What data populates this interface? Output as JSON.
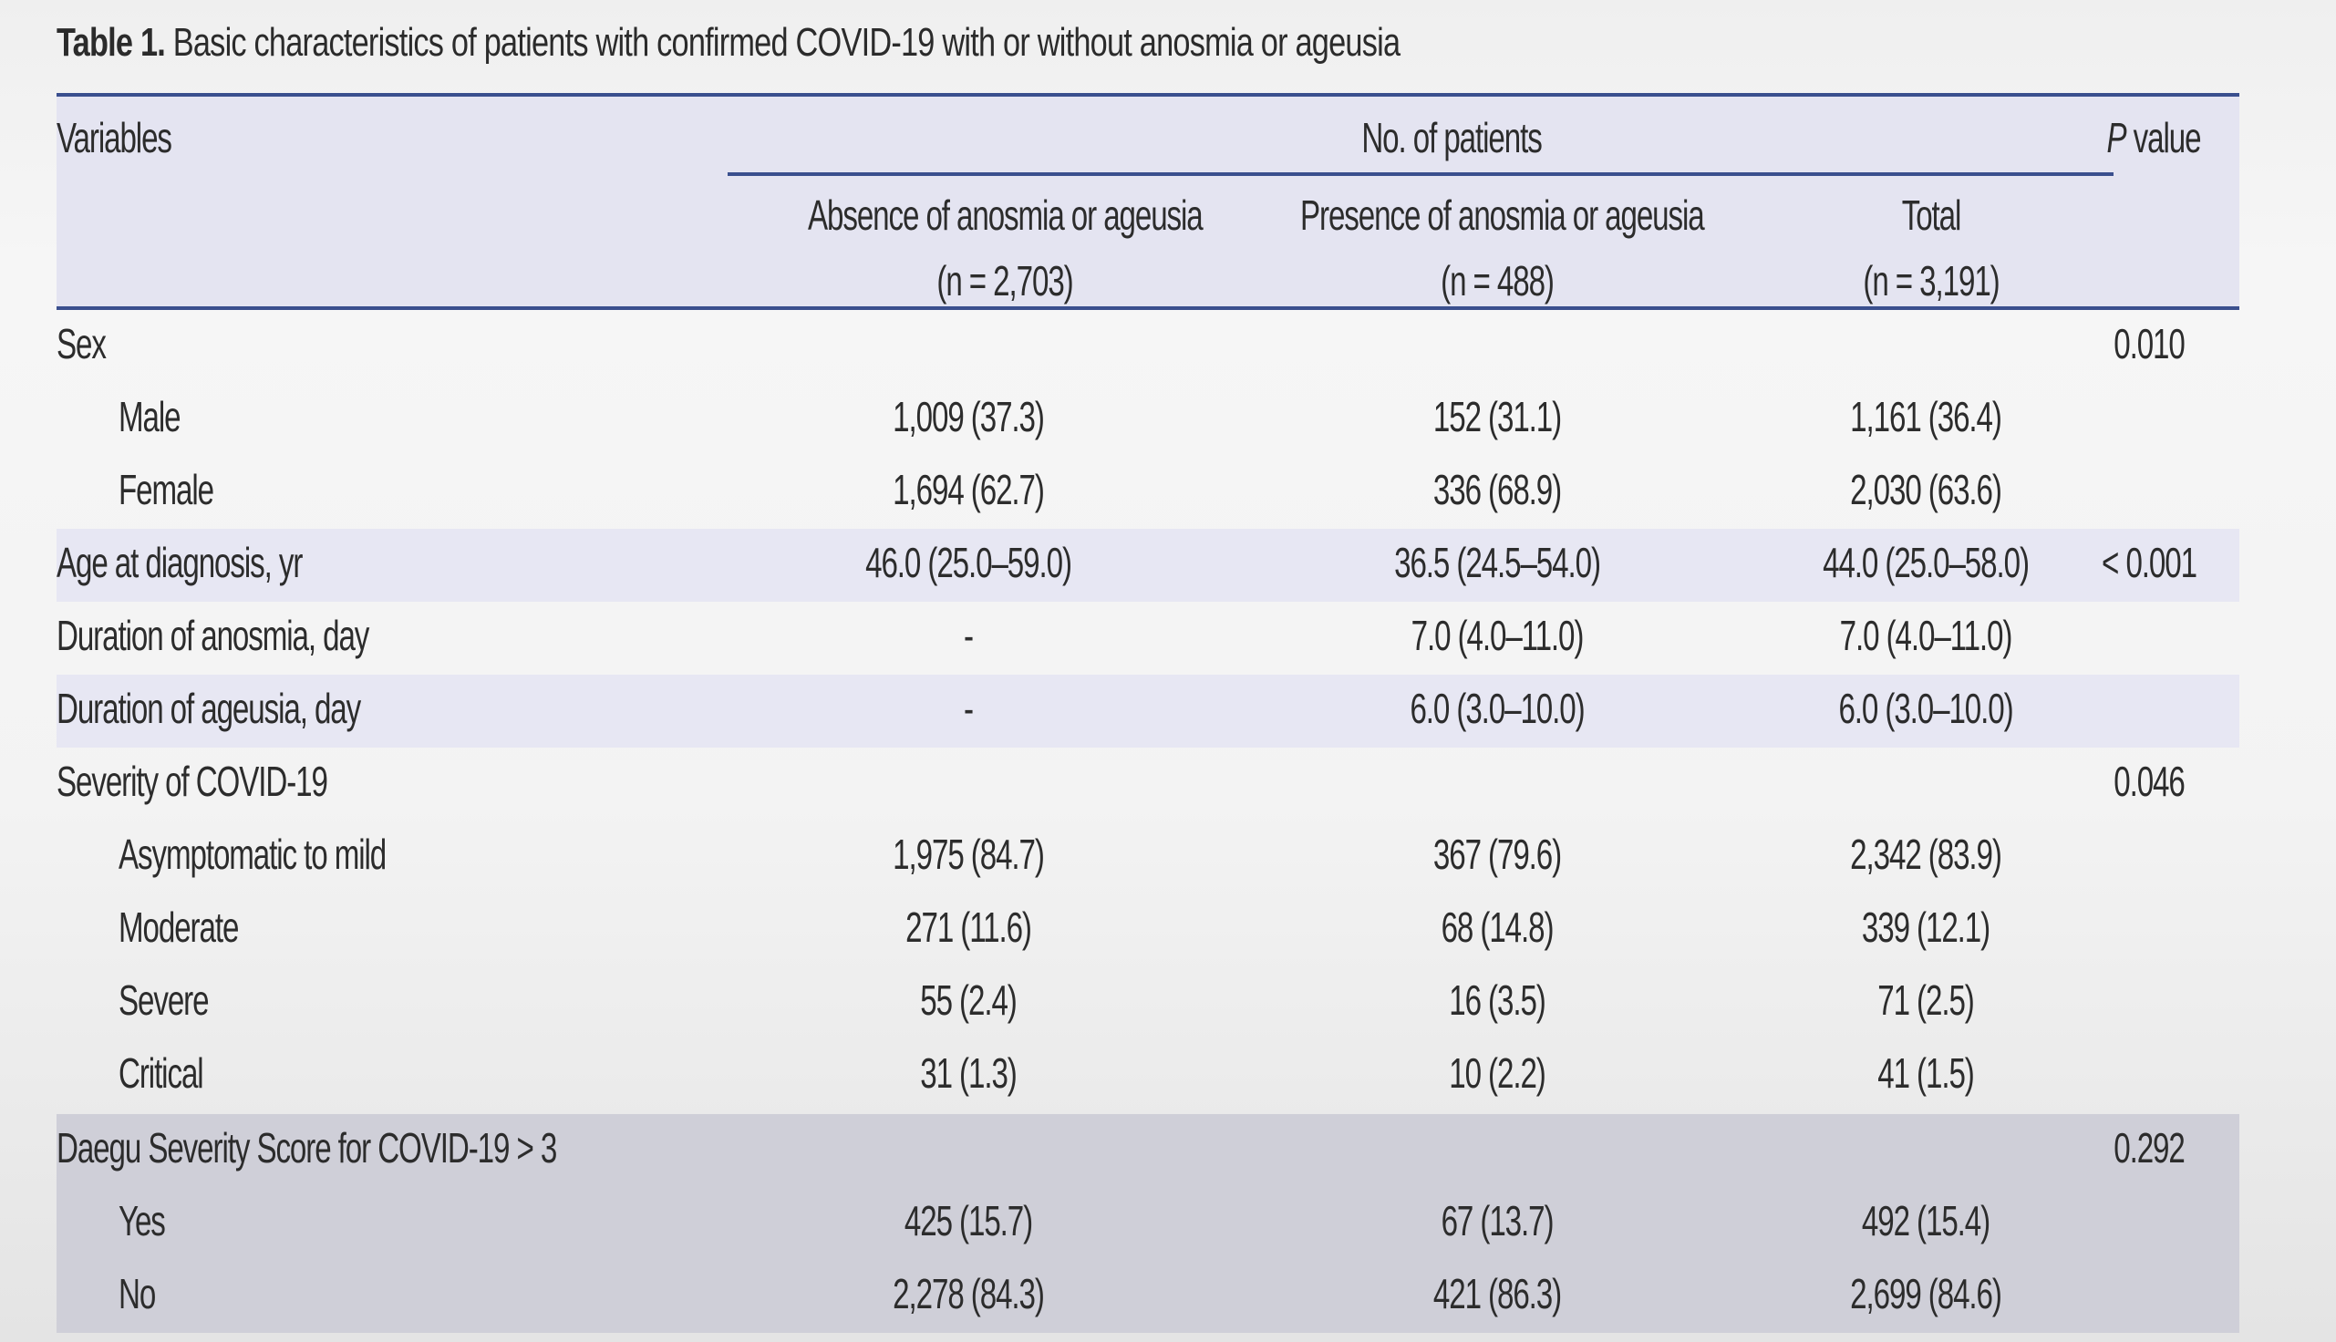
{
  "caption": {
    "label": "Table 1.",
    "text": " Basic characteristics of patients with confirmed COVID-19 with or without anosmia or ageusia"
  },
  "header": {
    "variables": "Variables",
    "no_of_patients": "No. of patients",
    "p_italic": "P",
    "p_rest": " value",
    "columns": [
      {
        "line1": "Absence of anosmia or ageusia",
        "line2": "(n = 2,703)"
      },
      {
        "line1": "Presence of anosmia or ageusia",
        "line2": "(n = 488)"
      },
      {
        "line1": "Total",
        "line2": "(n = 3,191)"
      }
    ]
  },
  "rows": [
    {
      "label": "Sex",
      "absence": "",
      "presence": "",
      "total": "",
      "p": "0.010"
    },
    {
      "label": "Male",
      "absence": "1,009 (37.3)",
      "presence": "152 (31.1)",
      "total": "1,161 (36.4)",
      "p": ""
    },
    {
      "label": "Female",
      "absence": "1,694 (62.7)",
      "presence": "336 (68.9)",
      "total": "2,030 (63.6)",
      "p": ""
    },
    {
      "label": "Age at diagnosis, yr",
      "absence": "46.0 (25.0–59.0)",
      "presence": "36.5 (24.5–54.0)",
      "total": "44.0 (25.0–58.0)",
      "p": "< 0.001"
    },
    {
      "label": "Duration of anosmia, day",
      "absence": "-",
      "presence": "7.0 (4.0–11.0)",
      "total": "7.0 (4.0–11.0)",
      "p": ""
    },
    {
      "label": "Duration of ageusia, day",
      "absence": "-",
      "presence": "6.0 (3.0–10.0)",
      "total": "6.0 (3.0–10.0)",
      "p": ""
    },
    {
      "label": "Severity of COVID-19",
      "absence": "",
      "presence": "",
      "total": "",
      "p": "0.046"
    },
    {
      "label": "Asymptomatic to mild",
      "absence": "1,975 (84.7)",
      "presence": "367 (79.6)",
      "total": "2,342 (83.9)",
      "p": ""
    },
    {
      "label": "Moderate",
      "absence": "271 (11.6)",
      "presence": "68 (14.8)",
      "total": "339 (12.1)",
      "p": ""
    },
    {
      "label": "Severe",
      "absence": "55 (2.4)",
      "presence": "16 (3.5)",
      "total": "71 (2.5)",
      "p": ""
    },
    {
      "label": "Critical",
      "absence": "31 (1.3)",
      "presence": "10 (2.2)",
      "total": "41 (1.5)",
      "p": ""
    },
    {
      "label": "Daegu Severity Score for COVID-19 > 3",
      "absence": "",
      "presence": "",
      "total": "",
      "p": "0.292"
    },
    {
      "label": "Yes",
      "absence": "425 (15.7)",
      "presence": "67 (13.7)",
      "total": "492 (15.4)",
      "p": ""
    },
    {
      "label": "No",
      "absence": "2,278 (84.3)",
      "presence": "421 (86.3)",
      "total": "2,699 (84.6)",
      "p": ""
    }
  ]
}
